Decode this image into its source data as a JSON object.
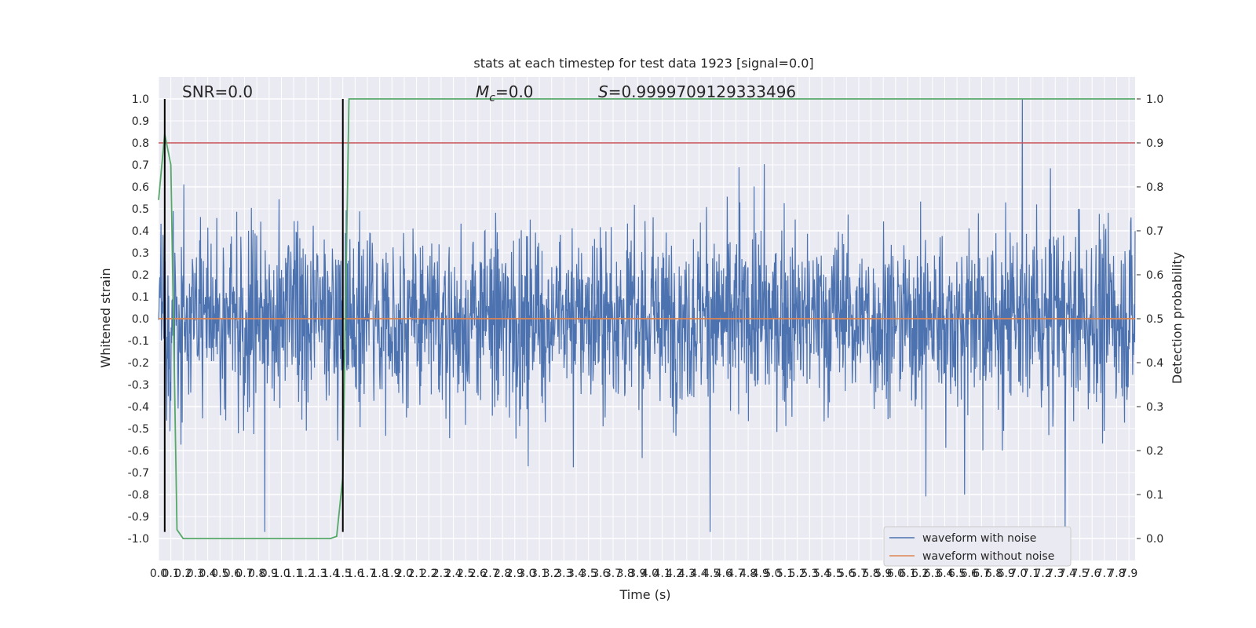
{
  "chart_data": {
    "type": "line",
    "title": "stats at each timestep for test data 1923 [signal=0.0]",
    "xlabel": "Time (s)",
    "ylabel": "Whitened strain",
    "y2label": "Detection probability",
    "xlim": [
      0.0,
      7.95
    ],
    "ylim": [
      -1.1,
      1.1
    ],
    "y2lim": [
      -0.05,
      1.05
    ],
    "grid": true,
    "legend_position": "lower-right",
    "xticks": [
      "0.0",
      "0.1",
      "0.2",
      "0.3",
      "0.4",
      "0.5",
      "0.6",
      "0.7",
      "0.8",
      "0.9",
      "1.0",
      "1.1",
      "1.2",
      "1.3",
      "1.4",
      "1.5",
      "1.6",
      "1.7",
      "1.8",
      "1.9",
      "2.0",
      "2.1",
      "2.2",
      "2.3",
      "2.4",
      "2.5",
      "2.6",
      "2.7",
      "2.8",
      "2.9",
      "3.0",
      "3.1",
      "3.2",
      "3.3",
      "3.4",
      "3.5",
      "3.6",
      "3.7",
      "3.8",
      "3.9",
      "4.0",
      "4.1",
      "4.2",
      "4.3",
      "4.4",
      "4.5",
      "4.6",
      "4.7",
      "4.8",
      "4.9",
      "5.0",
      "5.1",
      "5.2",
      "5.3",
      "5.4",
      "5.5",
      "5.6",
      "5.7",
      "5.8",
      "5.9",
      "6.0",
      "6.1",
      "6.2",
      "6.3",
      "6.4",
      "6.5",
      "6.6",
      "6.7",
      "6.8",
      "6.9",
      "7.0",
      "7.1",
      "7.2",
      "7.3",
      "7.4",
      "7.5",
      "7.6",
      "7.7",
      "7.8",
      "7.9"
    ],
    "yticks": [
      "1.0",
      "0.9",
      "0.8",
      "0.7",
      "0.6",
      "0.5",
      "0.4",
      "0.3",
      "0.2",
      "0.1",
      "0.0",
      "-0.1",
      "-0.2",
      "-0.3",
      "-0.4",
      "-0.5",
      "-0.6",
      "-0.7",
      "-0.8",
      "-0.9",
      "-1.0"
    ],
    "y2ticks": [
      "1.0",
      "0.9",
      "0.8",
      "0.7",
      "0.6",
      "0.5",
      "0.4",
      "0.3",
      "0.2",
      "0.1",
      "0.0"
    ],
    "annotations": {
      "snr": "SNR=0.0",
      "mc_symbol": "M",
      "mc_sub": "c",
      "mc_value": "=0.0",
      "s_symbol": "S",
      "s_value": "=0.9999709129333496"
    },
    "series": [
      {
        "name": "waveform with noise",
        "color": "#4c72b0",
        "axis": "left",
        "kind": "noise",
        "envelope_typical": 0.45,
        "peak_max": 1.0,
        "peak_min": -0.97
      },
      {
        "name": "waveform without noise",
        "color": "#dd8452",
        "axis": "left",
        "values": [
          0.0,
          0.0
        ],
        "x": [
          0.0,
          7.95
        ]
      },
      {
        "color": "#55a868",
        "axis": "right",
        "x": [
          0.0,
          0.05,
          0.1,
          0.15,
          0.2,
          0.25,
          0.3,
          0.35,
          0.4,
          0.45,
          0.5,
          0.55,
          0.6,
          0.65,
          0.7,
          0.75,
          0.8,
          0.85,
          0.9,
          0.95,
          1.0,
          1.05,
          1.1,
          1.15,
          1.2,
          1.25,
          1.3,
          1.35,
          1.4,
          1.45,
          1.5,
          1.55,
          7.95
        ],
        "values": [
          0.77,
          0.92,
          0.85,
          0.02,
          0.0,
          0.0,
          0.0,
          0.0,
          0.0,
          0.0,
          0.0,
          0.0,
          0.0,
          0.0,
          0.0,
          0.0,
          0.0,
          0.0,
          0.0,
          0.0,
          0.0,
          0.0,
          0.0,
          0.0,
          0.0,
          0.0,
          0.0,
          0.0,
          0.0,
          0.005,
          0.14,
          1.0,
          1.0
        ]
      },
      {
        "color": "#c44e52",
        "axis": "right",
        "kind": "threshold",
        "values": [
          0.9,
          0.9
        ],
        "x": [
          0.0,
          7.95
        ]
      }
    ],
    "vlines": {
      "color": "#000000",
      "x": [
        0.05,
        1.5
      ],
      "y_from": -0.97,
      "y_to": 1.0
    },
    "legend": [
      "waveform with noise",
      "waveform without noise"
    ]
  }
}
